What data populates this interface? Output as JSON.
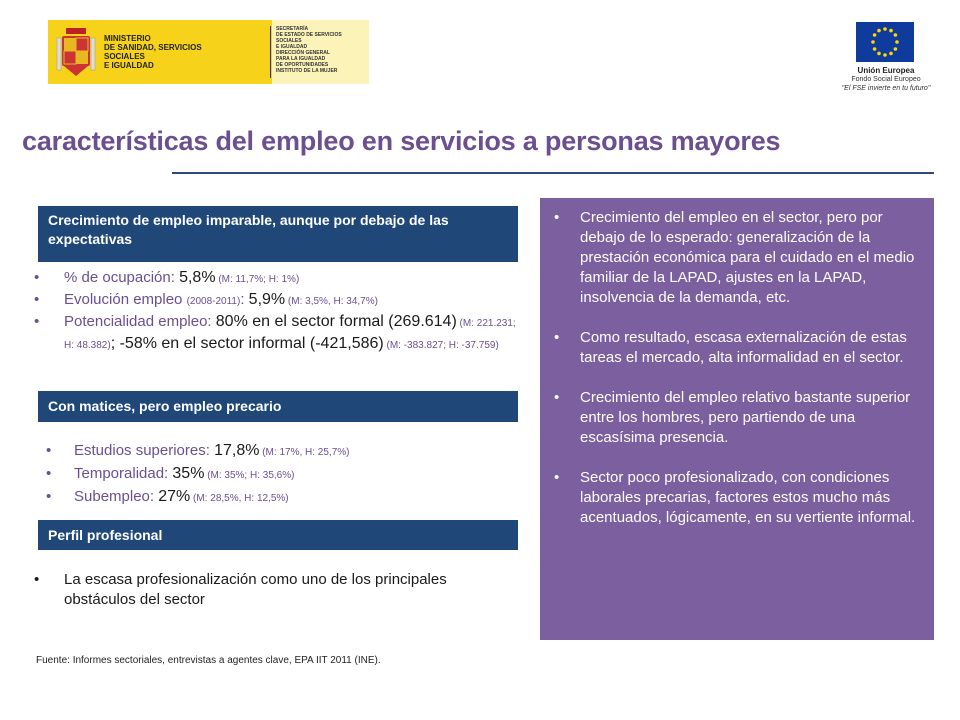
{
  "logos": {
    "ministry": {
      "name_lines": [
        "MINISTERIO",
        "DE SANIDAD, SERVICIOS SOCIALES",
        "E IGUALDAD"
      ],
      "secretaria_lines": [
        "SECRETARÍA",
        "DE ESTADO DE SERVICIOS SOCIALES",
        "E IGUALDAD",
        "DIRECCIÓN GENERAL",
        "PARA LA IGUALDAD",
        "DE OPORTUNIDADES"
      ],
      "instituto": "INSTITUTO DE LA MUJER"
    },
    "eu": {
      "line1": "Unión Europea",
      "line2": "Fondo Social Europeo",
      "line3": "\"El FSE invierte en tu futuro\""
    }
  },
  "title": "características del empleo en servicios a personas mayores",
  "sections": [
    {
      "header": "Crecimiento de empleo imparable, aunque por debajo de las expectativas",
      "bullets": [
        {
          "label": "% de ocupación: ",
          "value": "5,8%",
          "detail": " (M: 11,7%; H: 1%)"
        },
        {
          "label": "Evolución empleo ",
          "sub": "(2008-2011)",
          "colon": ": ",
          "value": "5,9%",
          "detail": " (M: 3,5%, H: 34,7%)"
        },
        {
          "label": "Potencialidad empleo: ",
          "value": "80% en el sector formal (269.614)",
          "detail": " (M: 221.231; H: 48.382)",
          "value2": "; -58% en el sector informal (-421,586)",
          "detail2": " (M: -383.827; H: -37.759)"
        }
      ]
    },
    {
      "header": "Con matices, pero empleo precario",
      "bullets": [
        {
          "label": "Estudios superiores: ",
          "value": "17,8%",
          "detail": " (M: 17%, H: 25,7%)"
        },
        {
          "label": "Temporalidad: ",
          "value": "35%",
          "detail": " (M: 35%; H: 35,6%)"
        },
        {
          "label": "Subempleo: ",
          "value": "27%",
          "detail": " (M: 28,5%, H: 12,5%)"
        }
      ]
    },
    {
      "header": "Perfil profesional",
      "bullets": [
        {
          "text": "La escasa profesionalización como uno de los principales obstáculos del sector"
        }
      ]
    }
  ],
  "right_panel": {
    "bullets": [
      "Crecimiento del empleo en el sector, pero por debajo de lo esperado: generalización de la prestación económica para el cuidado en el medio familiar de la LAPAD, ajustes en la LAPAD,  insolvencia de la demanda,  etc.",
      "Como resultado, escasa externalización de estas tareas el mercado, alta informalidad en el sector.",
      "Crecimiento del empleo relativo bastante superior entre los hombres, pero partiendo de una escasísima presencia.",
      "Sector poco profesionalizado, con condiciones laborales precarias, factores estos mucho más acentuados, lógicamente, en su vertiente informal."
    ]
  },
  "footer": {
    "source": "Fuente: Informes sectoriales, entrevistas a agentes clave, EPA IIT  2011 (INE)."
  },
  "bullet_char": "•",
  "colors": {
    "title": "#6b4f8f",
    "header_bg": "#1f4778",
    "panel_bg": "#7b5f9f",
    "logo_yellow": "#f7d21a",
    "eu_blue": "#0e3b9c"
  }
}
